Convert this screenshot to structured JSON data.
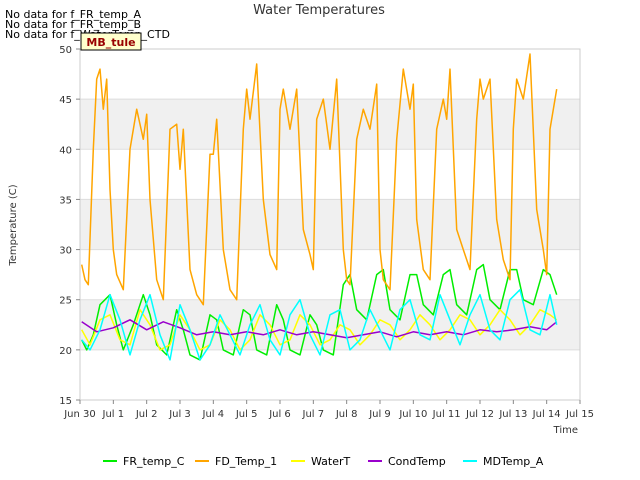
{
  "no_data_messages": [
    "No data for f_FR_temp_A",
    "No data for f_FR_temp_B",
    "No data for f_WaterTemp_CTD"
  ],
  "site_badge": "MB_tule",
  "colors": {
    "FR_temp_C": "#00ee00",
    "FD_Temp_1": "#ffa500",
    "WaterT": "#ffff00",
    "CondTemp": "#9900cc",
    "MDTemp_A": "#00ffff",
    "band": "#f0f0f0",
    "badge_bg": "#ffffcc",
    "badge_text": "#990000"
  },
  "chart_data": {
    "type": "line",
    "title": "Water Temperatures",
    "xlabel": "Time",
    "ylabel": "Temperature (C)",
    "xlim": [
      0,
      15
    ],
    "ylim": [
      15,
      50
    ],
    "x_ticks": [
      0,
      1,
      2,
      3,
      4,
      5,
      6,
      7,
      8,
      9,
      10,
      11,
      12,
      13,
      14,
      15
    ],
    "x_tick_labels": [
      "Jun 30",
      "Jul 1",
      "Jul 2",
      "Jul 3",
      "Jul 4",
      "Jul 5",
      "Jul 6",
      "Jul 7",
      "Jul 8",
      "Jul 9",
      "Jul 10",
      "Jul 11",
      "Jul 12",
      "Jul 13",
      "Jul 14",
      "Jul 15"
    ],
    "y_ticks": [
      15,
      20,
      25,
      30,
      35,
      40,
      45,
      50
    ],
    "y_tick_labels": [
      "15",
      "20",
      "25",
      "30",
      "35",
      "40",
      "45",
      "50"
    ],
    "grid": true,
    "legend_position": "bottom",
    "series": [
      {
        "name": "FR_temp_C",
        "x": [
          0.05,
          0.2,
          0.4,
          0.6,
          0.9,
          1.1,
          1.3,
          1.6,
          1.9,
          2.1,
          2.3,
          2.6,
          2.9,
          3.1,
          3.3,
          3.6,
          3.9,
          4.1,
          4.3,
          4.6,
          4.9,
          5.1,
          5.3,
          5.6,
          5.9,
          6.1,
          6.3,
          6.6,
          6.9,
          7.1,
          7.3,
          7.6,
          7.9,
          8.1,
          8.3,
          8.6,
          8.9,
          9.1,
          9.3,
          9.6,
          9.9,
          10.1,
          10.3,
          10.6,
          10.9,
          11.1,
          11.3,
          11.6,
          11.9,
          12.1,
          12.3,
          12.6,
          12.9,
          13.1,
          13.3,
          13.6,
          13.9,
          14.1,
          14.3
        ],
        "y": [
          21.0,
          20.0,
          21.5,
          24.5,
          25.5,
          22.5,
          20.0,
          22.5,
          25.5,
          23.5,
          20.5,
          19.5,
          24.0,
          22.0,
          19.5,
          19.0,
          23.5,
          23.0,
          20.0,
          19.5,
          24.0,
          23.5,
          20.0,
          19.5,
          24.5,
          23.0,
          20.0,
          19.5,
          23.5,
          22.5,
          20.0,
          19.5,
          26.5,
          27.5,
          24.0,
          23.0,
          27.5,
          28.0,
          24.0,
          23.0,
          27.5,
          27.5,
          24.5,
          23.5,
          27.5,
          28.0,
          24.5,
          23.5,
          28.0,
          28.5,
          25.0,
          24.0,
          28.0,
          28.0,
          25.0,
          24.5,
          28.0,
          27.5,
          25.5
        ]
      },
      {
        "name": "FD_Temp_1",
        "x": [
          0.05,
          0.15,
          0.25,
          0.4,
          0.5,
          0.6,
          0.7,
          0.8,
          0.9,
          1.0,
          1.1,
          1.3,
          1.5,
          1.7,
          1.9,
          2.0,
          2.1,
          2.3,
          2.5,
          2.7,
          2.9,
          3.0,
          3.1,
          3.3,
          3.5,
          3.7,
          3.9,
          4.0,
          4.1,
          4.3,
          4.5,
          4.7,
          4.9,
          5.0,
          5.1,
          5.3,
          5.5,
          5.7,
          5.9,
          6.0,
          6.1,
          6.3,
          6.5,
          6.7,
          6.9,
          7.0,
          7.1,
          7.3,
          7.5,
          7.7,
          7.9,
          8.0,
          8.1,
          8.3,
          8.5,
          8.7,
          8.9,
          9.0,
          9.1,
          9.3,
          9.5,
          9.7,
          9.9,
          10.0,
          10.1,
          10.3,
          10.5,
          10.7,
          10.9,
          11.0,
          11.1,
          11.3,
          11.5,
          11.7,
          11.9,
          12.0,
          12.1,
          12.3,
          12.5,
          12.7,
          12.9,
          13.0,
          13.1,
          13.3,
          13.5,
          13.7,
          13.9,
          14.0,
          14.1,
          14.3
        ],
        "y": [
          28.5,
          27.0,
          26.5,
          40.0,
          47.0,
          48.0,
          44.0,
          47.0,
          36.0,
          30.0,
          27.5,
          26.0,
          40.0,
          44.0,
          41.0,
          43.5,
          35.0,
          27.0,
          25.0,
          42.0,
          42.5,
          38.0,
          42.0,
          28.0,
          25.5,
          24.5,
          39.5,
          39.5,
          43.0,
          30.0,
          26.0,
          25.0,
          42.0,
          46.0,
          43.0,
          48.5,
          35.0,
          29.5,
          28.0,
          44.0,
          46.0,
          42.0,
          46.0,
          32.0,
          29.5,
          28.0,
          43.0,
          45.0,
          40.0,
          47.0,
          30.0,
          27.0,
          26.5,
          41.0,
          44.0,
          42.0,
          46.5,
          30.0,
          27.0,
          26.0,
          41.0,
          48.0,
          44.0,
          46.5,
          33.0,
          28.0,
          27.0,
          42.0,
          45.0,
          43.0,
          48.0,
          32.0,
          30.0,
          28.0,
          43.0,
          47.0,
          45.0,
          47.0,
          33.0,
          29.0,
          27.0,
          42.0,
          47.0,
          45.0,
          49.5,
          34.0,
          30.0,
          27.5,
          42.0,
          46.0
        ]
      },
      {
        "name": "WaterT",
        "x": [
          0.05,
          0.3,
          0.6,
          0.9,
          1.2,
          1.5,
          1.8,
          2.1,
          2.4,
          2.7,
          3.0,
          3.3,
          3.6,
          3.9,
          4.2,
          4.5,
          4.8,
          5.1,
          5.4,
          5.7,
          6.0,
          6.3,
          6.6,
          6.9,
          7.2,
          7.5,
          7.8,
          8.1,
          8.4,
          8.7,
          9.0,
          9.3,
          9.6,
          9.9,
          10.2,
          10.5,
          10.8,
          11.1,
          11.4,
          11.7,
          12.0,
          12.3,
          12.6,
          12.9,
          13.2,
          13.5,
          13.8,
          14.1,
          14.3
        ],
        "y": [
          22.0,
          20.5,
          23.0,
          23.5,
          21.0,
          20.5,
          24.0,
          22.5,
          20.0,
          20.5,
          23.5,
          22.0,
          20.0,
          20.5,
          23.0,
          22.0,
          20.0,
          21.0,
          23.5,
          22.5,
          20.5,
          21.0,
          23.5,
          22.5,
          20.5,
          21.0,
          22.5,
          22.0,
          20.5,
          21.5,
          23.0,
          22.5,
          21.0,
          22.0,
          23.5,
          22.5,
          21.0,
          22.0,
          23.5,
          23.0,
          21.5,
          22.5,
          24.0,
          23.0,
          21.5,
          22.5,
          24.0,
          23.5,
          23.0
        ]
      },
      {
        "name": "CondTemp",
        "x": [
          0.05,
          0.5,
          1.0,
          1.5,
          2.0,
          2.5,
          3.0,
          3.5,
          4.0,
          4.5,
          5.0,
          5.5,
          6.0,
          6.5,
          7.0,
          7.5,
          8.0,
          8.5,
          9.0,
          9.5,
          10.0,
          10.5,
          11.0,
          11.5,
          12.0,
          12.5,
          13.0,
          13.5,
          14.0,
          14.3
        ],
        "y": [
          22.8,
          21.8,
          22.2,
          23.0,
          22.0,
          22.8,
          22.2,
          21.5,
          21.8,
          21.5,
          21.8,
          21.5,
          22.0,
          21.5,
          21.8,
          21.5,
          21.2,
          21.5,
          21.8,
          21.3,
          21.8,
          21.5,
          21.8,
          21.5,
          22.0,
          21.8,
          22.0,
          22.3,
          22.0,
          22.8
        ]
      },
      {
        "name": "MDTemp_A",
        "x": [
          0.05,
          0.3,
          0.6,
          0.9,
          1.2,
          1.5,
          1.8,
          2.1,
          2.4,
          2.7,
          3.0,
          3.3,
          3.6,
          3.9,
          4.2,
          4.5,
          4.8,
          5.1,
          5.4,
          5.7,
          6.0,
          6.3,
          6.6,
          6.9,
          7.2,
          7.5,
          7.8,
          8.1,
          8.4,
          8.7,
          9.0,
          9.3,
          9.6,
          9.9,
          10.2,
          10.5,
          10.8,
          11.1,
          11.4,
          11.7,
          12.0,
          12.3,
          12.6,
          12.9,
          13.2,
          13.5,
          13.8,
          14.1,
          14.3
        ],
        "y": [
          21.0,
          20.0,
          22.0,
          25.5,
          23.0,
          19.5,
          23.0,
          25.5,
          21.5,
          19.0,
          24.5,
          22.0,
          19.0,
          20.5,
          23.5,
          21.5,
          19.5,
          22.5,
          24.5,
          21.0,
          19.5,
          23.5,
          25.0,
          21.5,
          19.5,
          23.5,
          24.0,
          20.0,
          21.0,
          24.0,
          22.0,
          20.0,
          24.0,
          25.0,
          21.5,
          21.0,
          25.5,
          23.0,
          20.5,
          23.5,
          25.5,
          22.0,
          21.0,
          25.0,
          26.0,
          22.0,
          21.5,
          25.5,
          22.5
        ]
      }
    ]
  }
}
